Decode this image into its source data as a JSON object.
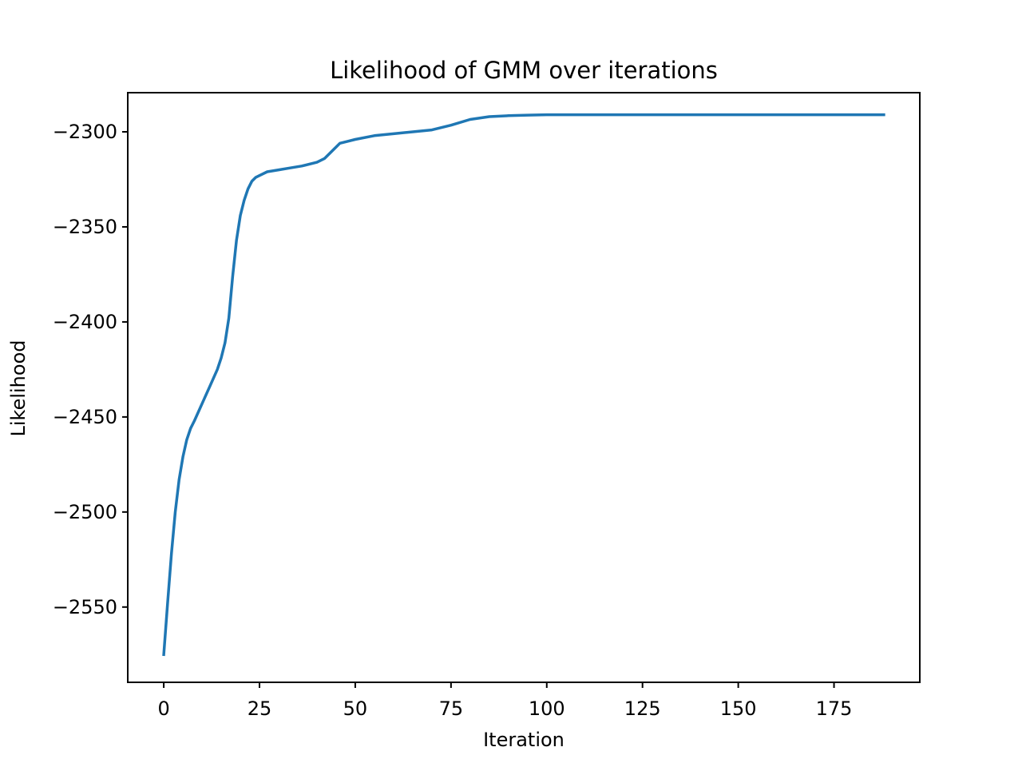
{
  "chart_data": {
    "type": "line",
    "title": "Likelihood of GMM over iterations",
    "xlabel": "Iteration",
    "ylabel": "Likelihood",
    "xlim": [
      -9.4,
      197.4
    ],
    "ylim": [
      -2589.6,
      -2279.4
    ],
    "xticks": [
      0,
      25,
      50,
      75,
      100,
      125,
      150,
      175
    ],
    "yticks": [
      -2550,
      -2500,
      -2450,
      -2400,
      -2350,
      -2300
    ],
    "grid": false,
    "legend": "none",
    "line_color": "#1f77b4",
    "series": [
      {
        "x": [
          0,
          1,
          2,
          3,
          4,
          5,
          6,
          7,
          8,
          10,
          12,
          14,
          15,
          16,
          17,
          18,
          19,
          20,
          21,
          22,
          23,
          24,
          25,
          27,
          30,
          33,
          36,
          40,
          42,
          44,
          45,
          46,
          48,
          50,
          55,
          60,
          65,
          70,
          75,
          80,
          85,
          90,
          95,
          100,
          110,
          125,
          150,
          175,
          188
        ],
        "y": [
          -2575,
          -2548,
          -2522,
          -2500,
          -2483,
          -2471,
          -2462,
          -2456,
          -2452,
          -2443,
          -2434,
          -2425,
          -2419,
          -2411,
          -2398,
          -2376,
          -2357,
          -2344,
          -2336,
          -2330,
          -2326,
          -2324,
          -2323,
          -2321,
          -2320,
          -2319,
          -2318,
          -2316,
          -2314,
          -2310,
          -2308,
          -2306,
          -2305,
          -2304,
          -2302,
          -2301,
          -2300,
          -2299,
          -2296.5,
          -2293.5,
          -2292,
          -2291.5,
          -2291.2,
          -2291,
          -2291,
          -2291,
          -2291,
          -2291,
          -2291
        ]
      }
    ]
  }
}
